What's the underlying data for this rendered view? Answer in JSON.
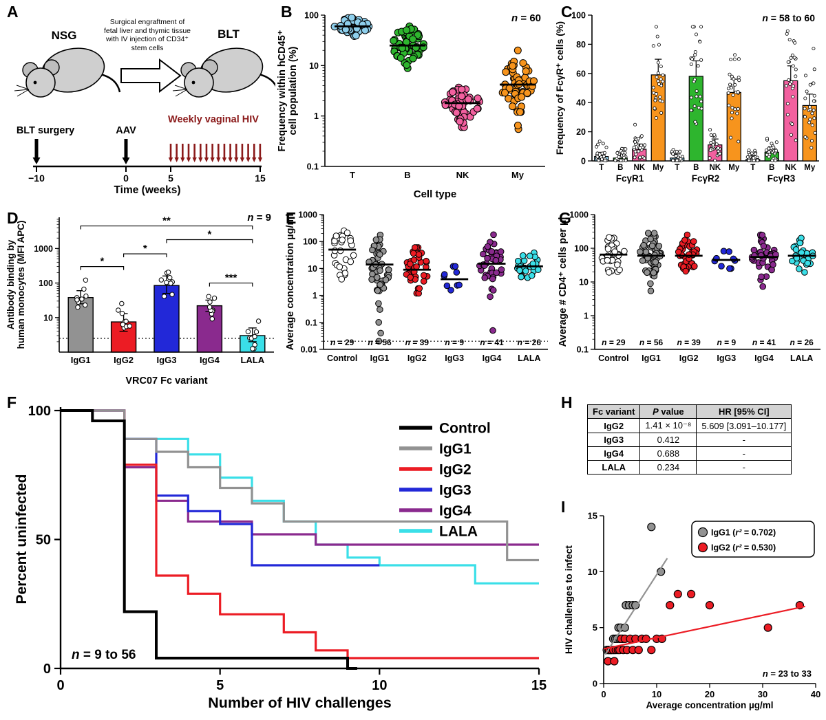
{
  "colors": {
    "T": "#8ecfec",
    "B": "#2eb52e",
    "NK": "#f2609f",
    "My": "#f7941d",
    "control": "#000000",
    "IgG1": "#929292",
    "IgG2": "#ec1c24",
    "IgG3": "#2228d8",
    "IgG4": "#8a2a8e",
    "LALA": "#3adfe8",
    "hiv_arrow": "#8b1a1a"
  },
  "panelA": {
    "label": "A",
    "nsg": "NSG",
    "blt": "BLT",
    "engraftment": "Surgical engraftment of fetal liver and thymic tissue with IV injection of CD34⁺ stem cells",
    "blt_surgery": "BLT surgery",
    "aav": "AAV",
    "weekly": "Weekly vaginal HIV",
    "ticks": [
      "−10",
      "0",
      "5",
      "15"
    ],
    "axis": "Time (weeks)"
  },
  "chart_data": [
    {
      "id": "B",
      "label": "B",
      "type": "scatter",
      "n_note": "n = 60",
      "ylabel_lines": [
        "Frequency within hCD45⁺",
        "cell population (%)"
      ],
      "xlabel": "Cell type",
      "yscale": "log",
      "ylim": [
        0.1,
        100
      ],
      "yticks": [
        0.1,
        1,
        10,
        100
      ],
      "ytick_labels": [
        "0.1",
        "1",
        "10",
        "100"
      ],
      "categories": [
        "T",
        "B",
        "NK",
        "My"
      ],
      "groups": [
        {
          "name": "T",
          "color_key": "T",
          "n": 60,
          "median": 60,
          "spread": 0.1,
          "clip": [
            32,
            92
          ]
        },
        {
          "name": "B",
          "color_key": "B",
          "n": 60,
          "median": 25,
          "spread": 0.22,
          "clip": [
            6,
            60
          ]
        },
        {
          "name": "NK",
          "color_key": "NK",
          "n": 60,
          "median": 1.8,
          "spread": 0.2,
          "clip": [
            0.6,
            5
          ]
        },
        {
          "name": "My",
          "color_key": "My",
          "n": 58,
          "median": 4.2,
          "spread": 0.28,
          "clip": [
            1.2,
            20
          ],
          "extra": [
            0.55,
            0.65
          ]
        }
      ]
    },
    {
      "id": "C",
      "label": "C",
      "type": "bar",
      "n_note": "n = 58 to 60",
      "ylabel": "Frequency of FcγR⁺ cells (%)",
      "ylim": [
        0,
        100
      ],
      "yticks": [
        0,
        20,
        40,
        60,
        80,
        100
      ],
      "group_labels": [
        "FcγR1",
        "FcγR2",
        "FcγR3"
      ],
      "categories": [
        "T",
        "B",
        "NK",
        "My"
      ],
      "series": [
        {
          "group": "FcγR1",
          "values": [
            3,
            2,
            8,
            59
          ]
        },
        {
          "group": "FcγR2",
          "values": [
            2,
            58,
            11,
            47
          ]
        },
        {
          "group": "FcγR3",
          "values": [
            1,
            6,
            55,
            38
          ]
        }
      ]
    },
    {
      "id": "D",
      "label": "D",
      "type": "bar",
      "n_note": "n = 9",
      "ylabel_lines": [
        "Antibody binding by",
        "human monocytes (MFI APC)"
      ],
      "xlabel": "VRC07 Fc variant",
      "yscale": "log",
      "ylim": [
        1,
        8000
      ],
      "yticks": [
        10,
        100,
        1000
      ],
      "ytick_labels": [
        "10",
        "100",
        "1000"
      ],
      "categories": [
        "IgG1",
        "IgG2",
        "IgG3",
        "IgG4",
        "LALA"
      ],
      "values": [
        38,
        7.5,
        85,
        22,
        3
      ],
      "errors_hi": [
        60,
        13,
        160,
        32,
        5
      ],
      "errors_lo": [
        25,
        4,
        50,
        15,
        2
      ],
      "dashed_y": 2.5,
      "dots_n": 9,
      "brackets": [
        {
          "from": 0,
          "to": 1,
          "label": "*",
          "y": 300
        },
        {
          "from": 1,
          "to": 2,
          "label": "*",
          "y": 700
        },
        {
          "from": 2,
          "to": 4,
          "label": "*",
          "y": 1800
        },
        {
          "from": 0,
          "to": 4,
          "label": "**",
          "y": 4500
        },
        {
          "from": 3,
          "to": 4,
          "label": "***",
          "y": 100
        }
      ]
    },
    {
      "id": "E",
      "label": "E",
      "type": "scatter",
      "ylabel": "Average concentration µg/ml",
      "yscale": "log",
      "ylim": [
        0.01,
        1000
      ],
      "yticks": [
        0.01,
        0.1,
        1,
        10,
        100,
        1000
      ],
      "ytick_labels": [
        "0.01",
        "0.1",
        "1",
        "10",
        "100",
        "1000"
      ],
      "categories": [
        "Control",
        "IgG1",
        "IgG2",
        "IgG3",
        "IgG4",
        "LALA"
      ],
      "n_notes": [
        "n = 29",
        "n = 56",
        "n = 39",
        "n = 9",
        "n = 41",
        "n = 26"
      ],
      "dashed_y": 0.02,
      "groups": [
        {
          "name": "Control",
          "color_key": "control_white",
          "n": 29,
          "median": 50,
          "spread": 0.5,
          "clip": [
            1.5,
            350
          ]
        },
        {
          "name": "IgG1",
          "color_key": "IgG1",
          "n": 50,
          "median": 14,
          "spread": 0.55,
          "clip": [
            0.8,
            250
          ],
          "extra": [
            0.02,
            0.04,
            0.1,
            0.3,
            0.5,
            1.5
          ]
        },
        {
          "name": "IgG2",
          "color_key": "IgG2",
          "n": 39,
          "median": 9,
          "spread": 0.4,
          "clip": [
            1.2,
            60
          ]
        },
        {
          "name": "IgG3",
          "color_key": "IgG3",
          "n": 9,
          "median": 4,
          "spread": 0.3,
          "clip": [
            1.3,
            12
          ]
        },
        {
          "name": "IgG4",
          "color_key": "IgG4",
          "n": 40,
          "median": 15,
          "spread": 0.55,
          "clip": [
            0.9,
            250
          ],
          "extra": [
            0.05
          ]
        },
        {
          "name": "LALA",
          "color_key": "LALA",
          "n": 26,
          "median": 12,
          "spread": 0.4,
          "clip": [
            1.5,
            90
          ]
        }
      ]
    },
    {
      "id": "F",
      "label": "F",
      "type": "line",
      "ylabel": "Percent uninfected",
      "xlabel": "Number of HIV challenges",
      "xlim": [
        0,
        15
      ],
      "ylim": [
        0,
        100
      ],
      "xticks": [
        0,
        5,
        10,
        15
      ],
      "yticks": [
        0,
        50,
        100
      ],
      "n_note": "n = 9 to 56",
      "legend": [
        "Control",
        "IgG1",
        "IgG2",
        "IgG3",
        "IgG4",
        "LALA"
      ],
      "series": [
        {
          "name": "Control",
          "color_key": "control",
          "points": [
            [
              0,
              100
            ],
            [
              1,
              100
            ],
            [
              1,
              96
            ],
            [
              2,
              96
            ],
            [
              2,
              22
            ],
            [
              3,
              22
            ],
            [
              3,
              4
            ],
            [
              9,
              4
            ],
            [
              9,
              0
            ],
            [
              9.3,
              0
            ]
          ]
        },
        {
          "name": "IgG1",
          "color_key": "IgG1",
          "points": [
            [
              0,
              100
            ],
            [
              2,
              100
            ],
            [
              2,
              89
            ],
            [
              3,
              89
            ],
            [
              3,
              84
            ],
            [
              4,
              84
            ],
            [
              4,
              78
            ],
            [
              5,
              78
            ],
            [
              5,
              70
            ],
            [
              6,
              70
            ],
            [
              6,
              64
            ],
            [
              7,
              64
            ],
            [
              7,
              57
            ],
            [
              14,
              57
            ],
            [
              14,
              42
            ],
            [
              15,
              42
            ]
          ]
        },
        {
          "name": "IgG2",
          "color_key": "IgG2",
          "points": [
            [
              0,
              100
            ],
            [
              2,
              100
            ],
            [
              2,
              79
            ],
            [
              3,
              79
            ],
            [
              3,
              36
            ],
            [
              4,
              36
            ],
            [
              4,
              29
            ],
            [
              5,
              29
            ],
            [
              5,
              21
            ],
            [
              7,
              21
            ],
            [
              7,
              14
            ],
            [
              8,
              14
            ],
            [
              8,
              7
            ],
            [
              9,
              7
            ],
            [
              9,
              4
            ],
            [
              15,
              4
            ]
          ]
        },
        {
          "name": "IgG3",
          "color_key": "IgG3",
          "points": [
            [
              0,
              100
            ],
            [
              2,
              100
            ],
            [
              2,
              89
            ],
            [
              3,
              89
            ],
            [
              3,
              67
            ],
            [
              4,
              67
            ],
            [
              4,
              61
            ],
            [
              5,
              61
            ],
            [
              5,
              56
            ],
            [
              6,
              56
            ],
            [
              6,
              40
            ],
            [
              10,
              40
            ]
          ]
        },
        {
          "name": "IgG4",
          "color_key": "IgG4",
          "points": [
            [
              0,
              100
            ],
            [
              2,
              100
            ],
            [
              2,
              78
            ],
            [
              3,
              78
            ],
            [
              3,
              65
            ],
            [
              4,
              65
            ],
            [
              4,
              57
            ],
            [
              6,
              57
            ],
            [
              6,
              52
            ],
            [
              8,
              52
            ],
            [
              8,
              48
            ],
            [
              15,
              48
            ]
          ]
        },
        {
          "name": "LALA",
          "color_key": "LALA",
          "points": [
            [
              0,
              100
            ],
            [
              2,
              100
            ],
            [
              2,
              89
            ],
            [
              4,
              89
            ],
            [
              4,
              83
            ],
            [
              5,
              83
            ],
            [
              5,
              74
            ],
            [
              6,
              74
            ],
            [
              6,
              65
            ],
            [
              7,
              65
            ],
            [
              7,
              57
            ],
            [
              8,
              57
            ],
            [
              8,
              48
            ],
            [
              9,
              48
            ],
            [
              9,
              43
            ],
            [
              10,
              43
            ],
            [
              10,
              40
            ],
            [
              13,
              40
            ],
            [
              13,
              33
            ],
            [
              15,
              33
            ]
          ]
        }
      ]
    },
    {
      "id": "G",
      "label": "G",
      "type": "scatter",
      "ylabel": "Average # CD4⁺ cells per µl",
      "yscale": "log",
      "ylim": [
        0.1,
        1000
      ],
      "yticks": [
        0.1,
        1,
        10,
        100,
        1000
      ],
      "ytick_labels": [
        "0.1",
        "1",
        "10",
        "100",
        "1000"
      ],
      "categories": [
        "Control",
        "IgG1",
        "IgG2",
        "IgG3",
        "IgG4",
        "LALA"
      ],
      "n_notes": [
        "n = 29",
        "n = 56",
        "n = 39",
        "n = 9",
        "n = 41",
        "n = 26"
      ],
      "groups": [
        {
          "name": "Control",
          "color_key": "control_white",
          "n": 29,
          "median": 65,
          "spread": 0.35,
          "clip": [
            4,
            300
          ]
        },
        {
          "name": "IgG1",
          "color_key": "IgG1",
          "n": 56,
          "median": 60,
          "spread": 0.35,
          "clip": [
            5,
            280
          ]
        },
        {
          "name": "IgG2",
          "color_key": "IgG2",
          "n": 39,
          "median": 60,
          "spread": 0.3,
          "clip": [
            7,
            250
          ]
        },
        {
          "name": "IgG3",
          "color_key": "IgG3",
          "n": 9,
          "median": 45,
          "spread": 0.18,
          "clip": [
            25,
            90
          ]
        },
        {
          "name": "IgG4",
          "color_key": "IgG4",
          "n": 41,
          "median": 55,
          "spread": 0.4,
          "clip": [
            3,
            250
          ]
        },
        {
          "name": "LALA",
          "color_key": "LALA",
          "n": 26,
          "median": 60,
          "spread": 0.3,
          "clip": [
            8,
            200
          ]
        }
      ]
    },
    {
      "id": "H",
      "label": "H",
      "type": "table",
      "headers": [
        "Fc variant",
        "P value",
        "HR [95% CI]"
      ],
      "rows": [
        [
          "IgG2",
          "1.41 × 10⁻⁸",
          "5.609 [3.091–10.177]"
        ],
        [
          "IgG3",
          "0.412",
          "-"
        ],
        [
          "IgG4",
          "0.688",
          "-"
        ],
        [
          "LALA",
          "0.234",
          "-"
        ]
      ]
    },
    {
      "id": "I",
      "label": "I",
      "type": "scatter",
      "ylabel": "HIV challenges to infect",
      "xlabel": "Average concentration µg/ml",
      "xlim": [
        0,
        40
      ],
      "ylim": [
        0,
        15
      ],
      "xticks": [
        0,
        10,
        20,
        30,
        40
      ],
      "yticks": [
        0,
        5,
        10,
        15
      ],
      "n_note": "n = 23 to 33",
      "legend": [
        {
          "label": "IgG1 (r² = 0.702)",
          "color_key": "IgG1"
        },
        {
          "label": "IgG2 (r² = 0.530)",
          "color_key": "IgG2"
        }
      ],
      "series": [
        {
          "name": "IgG1",
          "color_key": "IgG1",
          "line": [
            [
              0.3,
              2.6
            ],
            [
              12,
              11.2
            ]
          ],
          "points": [
            [
              0.6,
              3
            ],
            [
              0.9,
              3
            ],
            [
              1.2,
              3
            ],
            [
              1.5,
              3
            ],
            [
              1.8,
              4
            ],
            [
              2,
              3
            ],
            [
              2.2,
              4
            ],
            [
              2.5,
              4
            ],
            [
              2.8,
              5
            ],
            [
              3,
              4
            ],
            [
              3.2,
              5
            ],
            [
              3.6,
              4
            ],
            [
              4,
              5
            ],
            [
              4.2,
              7
            ],
            [
              4.8,
              7
            ],
            [
              5.5,
              7
            ],
            [
              6,
              7
            ],
            [
              9,
              14
            ],
            [
              10.8,
              10
            ]
          ]
        },
        {
          "name": "IgG2",
          "color_key": "IgG2",
          "line": [
            [
              0,
              3.1
            ],
            [
              38,
              6.9
            ]
          ],
          "points": [
            [
              0.8,
              2
            ],
            [
              1,
              3
            ],
            [
              1.4,
              3
            ],
            [
              1.8,
              3
            ],
            [
              2,
              2
            ],
            [
              2.3,
              3
            ],
            [
              2.7,
              3
            ],
            [
              3,
              3
            ],
            [
              3.3,
              4
            ],
            [
              3.7,
              3
            ],
            [
              4,
              4
            ],
            [
              4.4,
              3
            ],
            [
              5,
              4
            ],
            [
              5.5,
              3
            ],
            [
              6,
              4
            ],
            [
              6.6,
              3
            ],
            [
              7.2,
              4
            ],
            [
              8,
              4
            ],
            [
              9,
              3
            ],
            [
              10,
              4
            ],
            [
              11,
              4
            ],
            [
              12.5,
              7
            ],
            [
              14,
              8
            ],
            [
              16.5,
              8
            ],
            [
              20,
              7
            ],
            [
              31,
              5
            ],
            [
              37,
              7
            ]
          ]
        }
      ]
    }
  ]
}
